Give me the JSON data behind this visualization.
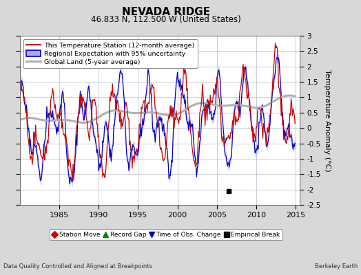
{
  "title": "NEVADA RIDGE",
  "subtitle": "46.833 N, 112.500 W (United States)",
  "ylabel": "Temperature Anomaly (°C)",
  "xlabel_left": "Data Quality Controlled and Aligned at Breakpoints",
  "xlabel_right": "Berkeley Earth",
  "ylim": [
    -2.5,
    3.0
  ],
  "xlim": [
    1980.0,
    2015.5
  ],
  "yticks": [
    -2.5,
    -2,
    -1.5,
    -1,
    -0.5,
    0,
    0.5,
    1,
    1.5,
    2,
    2.5,
    3
  ],
  "xticks": [
    1985,
    1990,
    1995,
    2000,
    2005,
    2010,
    2015
  ],
  "background_color": "#d8d8d8",
  "plot_bg_color": "#ffffff",
  "grid_color": "#b0b8cc",
  "station_line_color": "#cc0000",
  "regional_line_color": "#0000cc",
  "regional_fill_color": "#aaaaee",
  "global_line_color": "#b0b0b0",
  "empirical_break_year": 2006.5,
  "empirical_break_y": -2.05,
  "legend_items": [
    {
      "label": "This Temperature Station (12-month average)",
      "color": "#cc0000",
      "lw": 1.5
    },
    {
      "label": "Regional Expectation with 95% uncertainty",
      "color": "#0000cc",
      "lw": 1.5
    },
    {
      "label": "Global Land (5-year average)",
      "color": "#b0b0b0",
      "lw": 2.0
    }
  ],
  "marker_legend": [
    {
      "label": "Station Move",
      "color": "#cc0000",
      "marker": "D"
    },
    {
      "label": "Record Gap",
      "color": "#008800",
      "marker": "^"
    },
    {
      "label": "Time of Obs. Change",
      "color": "#0000cc",
      "marker": "v"
    },
    {
      "label": "Empirical Break",
      "color": "#000000",
      "marker": "s"
    }
  ]
}
